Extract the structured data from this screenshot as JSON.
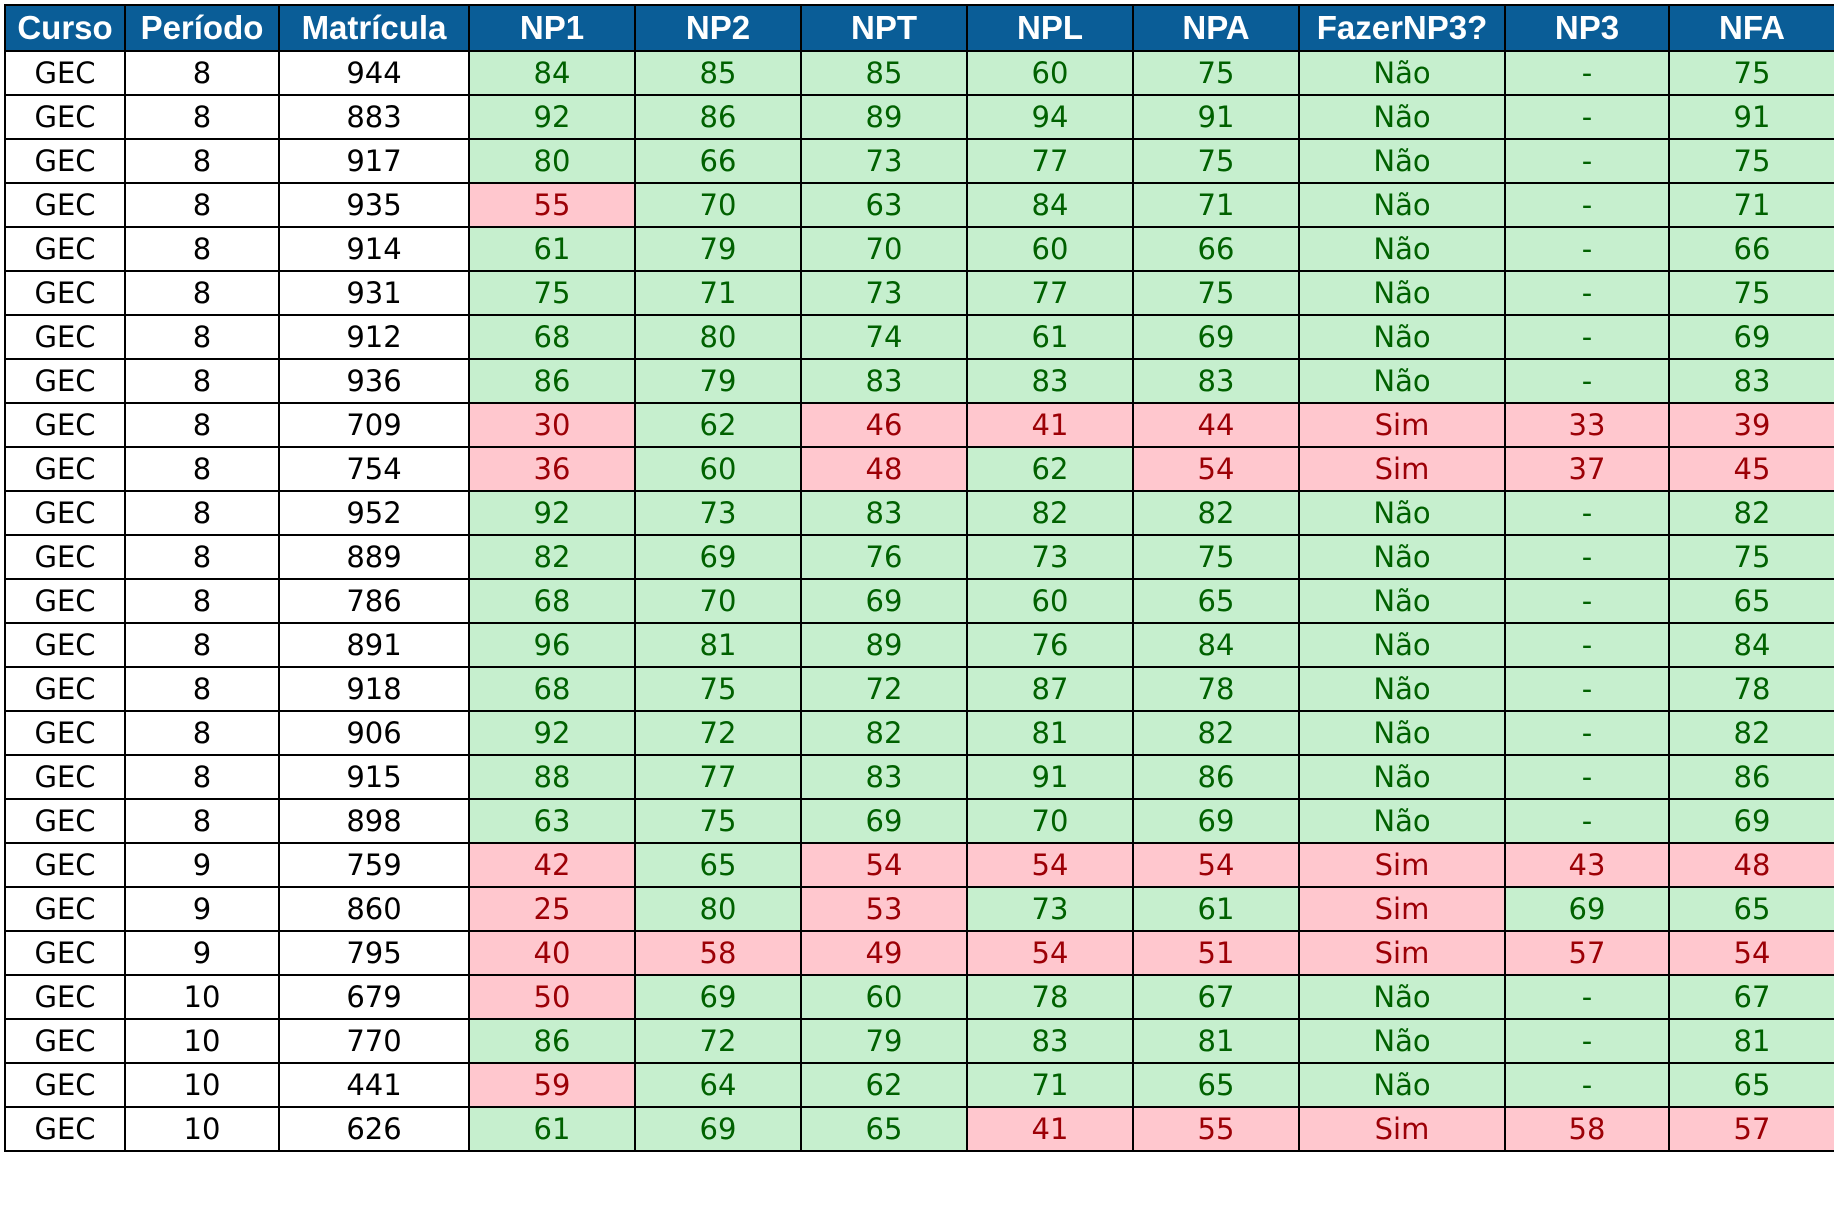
{
  "table": {
    "headers": [
      "Curso",
      "Período",
      "Matrícula",
      "NP1",
      "NP2",
      "NPT",
      "NPL",
      "NPA",
      "FazerNP3?",
      "NP3",
      "NFA"
    ],
    "colors": {
      "header_bg": "#0a5d97",
      "header_text": "#ffffff",
      "pass_bg": "#c6efce",
      "pass_text": "#006100",
      "fail_bg": "#ffc7ce",
      "fail_text": "#9c0006"
    },
    "rows": [
      [
        "GEC",
        "8",
        "944",
        "84",
        "85",
        "85",
        "60",
        "75",
        "Não",
        "-",
        "75"
      ],
      [
        "GEC",
        "8",
        "883",
        "92",
        "86",
        "89",
        "94",
        "91",
        "Não",
        "-",
        "91"
      ],
      [
        "GEC",
        "8",
        "917",
        "80",
        "66",
        "73",
        "77",
        "75",
        "Não",
        "-",
        "75"
      ],
      [
        "GEC",
        "8",
        "935",
        "55",
        "70",
        "63",
        "84",
        "71",
        "Não",
        "-",
        "71"
      ],
      [
        "GEC",
        "8",
        "914",
        "61",
        "79",
        "70",
        "60",
        "66",
        "Não",
        "-",
        "66"
      ],
      [
        "GEC",
        "8",
        "931",
        "75",
        "71",
        "73",
        "77",
        "75",
        "Não",
        "-",
        "75"
      ],
      [
        "GEC",
        "8",
        "912",
        "68",
        "80",
        "74",
        "61",
        "69",
        "Não",
        "-",
        "69"
      ],
      [
        "GEC",
        "8",
        "936",
        "86",
        "79",
        "83",
        "83",
        "83",
        "Não",
        "-",
        "83"
      ],
      [
        "GEC",
        "8",
        "709",
        "30",
        "62",
        "46",
        "41",
        "44",
        "Sim",
        "33",
        "39"
      ],
      [
        "GEC",
        "8",
        "754",
        "36",
        "60",
        "48",
        "62",
        "54",
        "Sim",
        "37",
        "45"
      ],
      [
        "GEC",
        "8",
        "952",
        "92",
        "73",
        "83",
        "82",
        "82",
        "Não",
        "-",
        "82"
      ],
      [
        "GEC",
        "8",
        "889",
        "82",
        "69",
        "76",
        "73",
        "75",
        "Não",
        "-",
        "75"
      ],
      [
        "GEC",
        "8",
        "786",
        "68",
        "70",
        "69",
        "60",
        "65",
        "Não",
        "-",
        "65"
      ],
      [
        "GEC",
        "8",
        "891",
        "96",
        "81",
        "89",
        "76",
        "84",
        "Não",
        "-",
        "84"
      ],
      [
        "GEC",
        "8",
        "918",
        "68",
        "75",
        "72",
        "87",
        "78",
        "Não",
        "-",
        "78"
      ],
      [
        "GEC",
        "8",
        "906",
        "92",
        "72",
        "82",
        "81",
        "82",
        "Não",
        "-",
        "82"
      ],
      [
        "GEC",
        "8",
        "915",
        "88",
        "77",
        "83",
        "91",
        "86",
        "Não",
        "-",
        "86"
      ],
      [
        "GEC",
        "8",
        "898",
        "63",
        "75",
        "69",
        "70",
        "69",
        "Não",
        "-",
        "69"
      ],
      [
        "GEC",
        "9",
        "759",
        "42",
        "65",
        "54",
        "54",
        "54",
        "Sim",
        "43",
        "48"
      ],
      [
        "GEC",
        "9",
        "860",
        "25",
        "80",
        "53",
        "73",
        "61",
        "Sim",
        "69",
        "65"
      ],
      [
        "GEC",
        "9",
        "795",
        "40",
        "58",
        "49",
        "54",
        "51",
        "Sim",
        "57",
        "54"
      ],
      [
        "GEC",
        "10",
        "679",
        "50",
        "69",
        "60",
        "78",
        "67",
        "Não",
        "-",
        "67"
      ],
      [
        "GEC",
        "10",
        "770",
        "86",
        "72",
        "79",
        "83",
        "81",
        "Não",
        "-",
        "81"
      ],
      [
        "GEC",
        "10",
        "441",
        "59",
        "64",
        "62",
        "71",
        "65",
        "Não",
        "-",
        "65"
      ],
      [
        "GEC",
        "10",
        "626",
        "61",
        "69",
        "65",
        "41",
        "55",
        "Sim",
        "58",
        "57"
      ]
    ]
  }
}
